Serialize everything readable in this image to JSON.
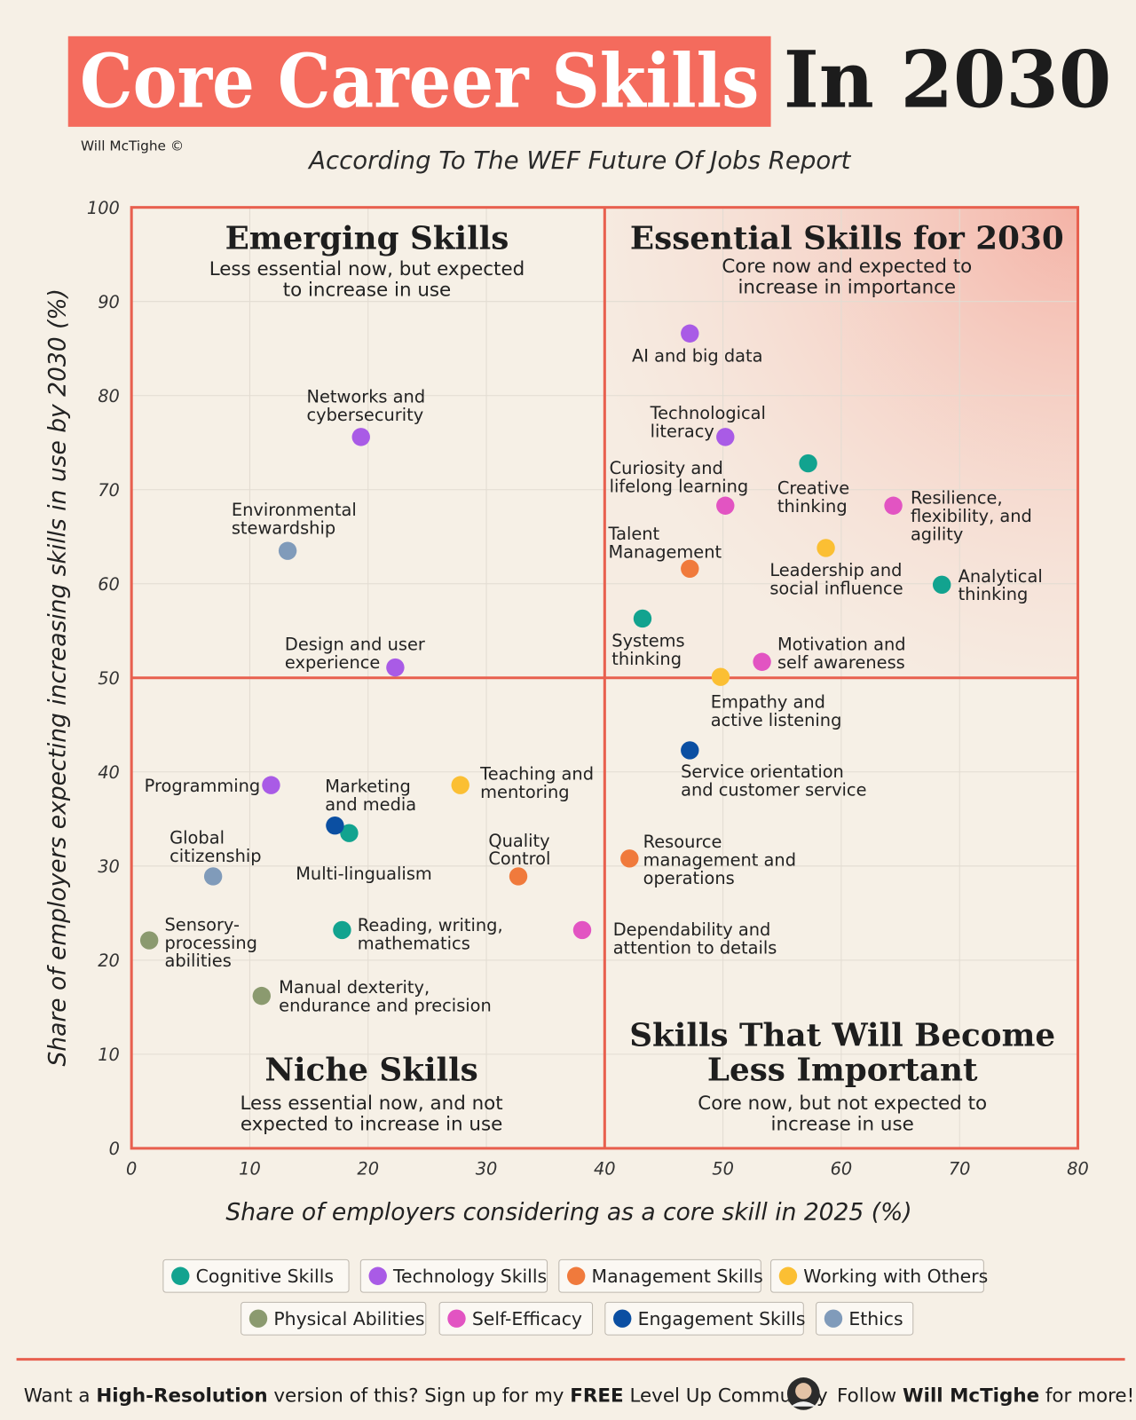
{
  "header": {
    "title": "Core Career Skills",
    "title_suffix": "In 2030",
    "credit": "Will McTighe ©",
    "subtitle": "According To The WEF Future Of Jobs Report"
  },
  "chart_data": {
    "type": "scatter",
    "x_label": "Share of employers considering as a core skill in 2025 (%)",
    "y_label": "Share of employers expecting increasing skills in use by 2030 (%)",
    "xlim": [
      0,
      80
    ],
    "ylim": [
      0,
      100
    ],
    "xticks": [
      0,
      10,
      20,
      30,
      40,
      50,
      60,
      70,
      80
    ],
    "yticks": [
      0,
      10,
      20,
      30,
      40,
      50,
      60,
      70,
      80,
      90,
      100
    ],
    "grid": true,
    "dividers": {
      "x": 40,
      "y": 50
    },
    "quadrants": [
      {
        "title": [
          "Emerging Skills"
        ],
        "subtitle": [
          "Less essential now, but expected",
          "to increase in use"
        ]
      },
      {
        "title": [
          "Essential Skills for 2030"
        ],
        "subtitle": [
          "Core now and expected to",
          "increase in importance"
        ]
      },
      {
        "title": [
          "Niche Skills"
        ],
        "subtitle": [
          "Less essential now, and not",
          "expected to increase in use"
        ]
      },
      {
        "title": [
          "Skills That Will Become",
          "Less Important"
        ],
        "subtitle": [
          "Core now, but not expected to",
          "increase in use"
        ]
      }
    ],
    "series": [
      {
        "name": "Cognitive Skills",
        "color": "#12a38f",
        "x": [
          57.2,
          68.5,
          43.2,
          18.4,
          17.8
        ],
        "y": [
          72.8,
          59.9,
          56.3,
          33.5,
          23.2
        ],
        "labels": [
          [
            "Creative",
            "thinking"
          ],
          [
            "Analytical",
            "thinking"
          ],
          [
            "Systems",
            "thinking"
          ],
          [
            "Multi-lingualism"
          ],
          [
            "Reading, writing,",
            "mathematics"
          ]
        ]
      },
      {
        "name": "Technology Skills",
        "color": "#a95be6",
        "x": [
          47.2,
          50.2,
          19.4,
          22.3,
          11.8
        ],
        "y": [
          86.6,
          75.6,
          75.6,
          51.1,
          38.6
        ],
        "labels": [
          [
            "AI and big data"
          ],
          [
            "Technological",
            "literacy"
          ],
          [
            "Networks and",
            "cybersecurity"
          ],
          [
            "Design and user",
            "experience"
          ],
          [
            "Programming"
          ]
        ]
      },
      {
        "name": "Management Skills",
        "color": "#f07a3c",
        "x": [
          47.2,
          42.1,
          32.7
        ],
        "y": [
          61.6,
          30.8,
          28.9
        ],
        "labels": [
          [
            "Talent",
            "Management"
          ],
          [
            "Resource",
            "management and",
            "operations"
          ],
          [
            "Quality",
            "Control"
          ]
        ]
      },
      {
        "name": "Working with Others",
        "color": "#fbbf33",
        "x": [
          58.7,
          49.8,
          27.8
        ],
        "y": [
          63.8,
          50.1,
          38.6
        ],
        "labels": [
          [
            "Leadership and",
            "social influence"
          ],
          [
            "Empathy and",
            "active listening"
          ],
          [
            "Teaching and",
            "mentoring"
          ]
        ]
      },
      {
        "name": "Physical Abilities",
        "color": "#8b9a6f",
        "x": [
          1.5,
          11.0
        ],
        "y": [
          22.1,
          16.2
        ],
        "labels": [
          [
            "Sensory-",
            "processing",
            "abilities"
          ],
          [
            "Manual dexterity,",
            "endurance and precision"
          ]
        ]
      },
      {
        "name": "Self-Efficacy",
        "color": "#e254c2",
        "x": [
          64.4,
          50.2,
          53.3,
          38.1
        ],
        "y": [
          68.3,
          68.3,
          51.7,
          23.2
        ],
        "labels": [
          [
            "Resilience,",
            "flexibility, and",
            "agility"
          ],
          [
            "Curiosity and",
            "lifelong learning"
          ],
          [
            "Motivation and",
            "self awareness"
          ],
          [
            "Dependability and",
            "attention to details"
          ]
        ]
      },
      {
        "name": "Engagement Skills",
        "color": "#0b4fa2",
        "x": [
          47.2,
          17.2
        ],
        "y": [
          42.3,
          34.3
        ],
        "labels": [
          [
            "Service orientation",
            "and customer service"
          ],
          [
            "Marketing",
            "and media"
          ]
        ]
      },
      {
        "name": "Ethics",
        "color": "#809bba",
        "x": [
          13.2,
          6.9
        ],
        "y": [
          63.5,
          28.9
        ],
        "labels": [
          [
            "Environmental",
            "stewardship"
          ],
          [
            "Global",
            "citizenship"
          ]
        ]
      }
    ]
  },
  "footer": {
    "left": [
      {
        "text": "Want a ",
        "bold": false
      },
      {
        "text": "High-Resolution",
        "bold": true
      },
      {
        "text": " version of this? Sign up for my ",
        "bold": false
      },
      {
        "text": "FREE",
        "bold": true
      },
      {
        "text": " Level Up Community",
        "bold": false
      }
    ],
    "right": [
      {
        "text": "Follow ",
        "bold": false
      },
      {
        "text": "Will McTighe",
        "bold": true
      },
      {
        "text": " for more!",
        "bold": false
      }
    ]
  }
}
